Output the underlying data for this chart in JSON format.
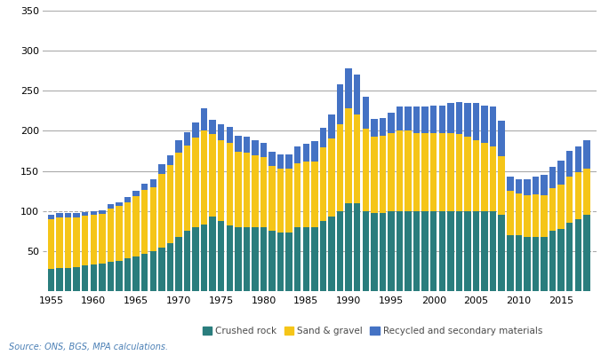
{
  "years": [
    1955,
    1956,
    1957,
    1958,
    1959,
    1960,
    1961,
    1962,
    1963,
    1964,
    1965,
    1966,
    1967,
    1968,
    1969,
    1970,
    1971,
    1972,
    1973,
    1974,
    1975,
    1976,
    1977,
    1978,
    1979,
    1980,
    1981,
    1982,
    1983,
    1984,
    1985,
    1986,
    1987,
    1988,
    1989,
    1990,
    1991,
    1992,
    1993,
    1994,
    1995,
    1996,
    1997,
    1998,
    1999,
    2000,
    2001,
    2002,
    2003,
    2004,
    2005,
    2006,
    2007,
    2008,
    2009,
    2010,
    2011,
    2012,
    2013,
    2014,
    2015,
    2016,
    2017,
    2018
  ],
  "crushed_rock": [
    28,
    29,
    29,
    30,
    32,
    33,
    34,
    36,
    38,
    41,
    43,
    46,
    50,
    54,
    60,
    68,
    75,
    80,
    83,
    93,
    88,
    82,
    80,
    80,
    80,
    80,
    75,
    73,
    73,
    80,
    80,
    80,
    87,
    93,
    100,
    110,
    110,
    100,
    97,
    97,
    100,
    100,
    100,
    100,
    100,
    100,
    100,
    100,
    100,
    100,
    100,
    100,
    100,
    95,
    70,
    70,
    68,
    68,
    68,
    75,
    78,
    85,
    90,
    95
  ],
  "sand_gravel": [
    62,
    63,
    63,
    62,
    62,
    62,
    62,
    67,
    68,
    70,
    75,
    80,
    80,
    92,
    97,
    105,
    107,
    112,
    117,
    103,
    100,
    103,
    94,
    93,
    90,
    87,
    81,
    80,
    80,
    80,
    82,
    82,
    92,
    97,
    108,
    118,
    110,
    103,
    96,
    97,
    97,
    100,
    100,
    97,
    97,
    97,
    97,
    97,
    96,
    93,
    88,
    85,
    80,
    73,
    55,
    52,
    52,
    53,
    52,
    53,
    55,
    58,
    58,
    58
  ],
  "recycled": [
    5,
    5,
    5,
    5,
    5,
    5,
    5,
    5,
    5,
    6,
    7,
    8,
    10,
    12,
    12,
    15,
    16,
    18,
    28,
    18,
    20,
    20,
    20,
    20,
    18,
    18,
    18,
    18,
    18,
    20,
    22,
    25,
    25,
    30,
    50,
    50,
    50,
    40,
    22,
    22,
    26,
    30,
    30,
    33,
    33,
    35,
    35,
    38,
    40,
    42,
    47,
    47,
    50,
    45,
    18,
    18,
    20,
    22,
    25,
    27,
    30,
    32,
    32,
    35
  ],
  "color_crushed_rock": "#2a7d7d",
  "color_sand_gravel": "#f5c518",
  "color_recycled": "#4472c4",
  "source_text": "Source: ONS, BGS, MPA calculations.",
  "ylim": [
    0,
    350
  ],
  "yticks": [
    0,
    50,
    100,
    150,
    200,
    250,
    300,
    350
  ],
  "dashed_gridlines": [
    50,
    100
  ],
  "solid_gridlines": [
    150,
    200,
    250,
    300,
    350
  ],
  "grid_color": "#aaaaaa",
  "background_color": "#ffffff",
  "legend_labels": [
    "Crushed rock",
    "Sand & gravel",
    "Recycled and secondary materials"
  ]
}
